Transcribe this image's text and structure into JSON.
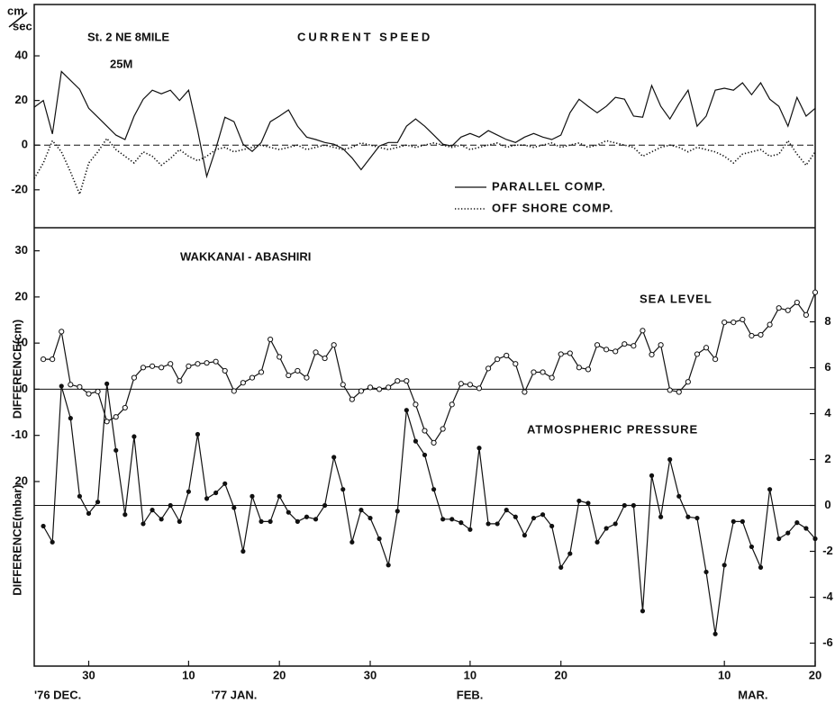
{
  "chart_data": [
    {
      "type": "line",
      "title": "CURRENT SPEED",
      "annotations": [
        "St. 2  NE 8MILE",
        "25M"
      ],
      "y_unit": [
        "cm",
        "sec"
      ],
      "xlim": [
        0,
        86
      ],
      "ylim": [
        -37,
        63
      ],
      "yticks": [
        40,
        20,
        0,
        -20
      ],
      "zero_line": "dashed",
      "legend": "lower right",
      "x": [
        0,
        1,
        2,
        3,
        4,
        5,
        6,
        7,
        8,
        9,
        10,
        11,
        12,
        13,
        14,
        15,
        16,
        17,
        18,
        19,
        20,
        21,
        22,
        23,
        24,
        25,
        26,
        27,
        28,
        29,
        30,
        31,
        32,
        33,
        34,
        35,
        36,
        37,
        38,
        39,
        40,
        41,
        42,
        43,
        44,
        45,
        46,
        47,
        48,
        49,
        50,
        51,
        52,
        53,
        54,
        55,
        56,
        57,
        58,
        59,
        60,
        61,
        62,
        63,
        64,
        65,
        66,
        67,
        68,
        69,
        70,
        71,
        72,
        73,
        74,
        75,
        76,
        77,
        78,
        79,
        80,
        81,
        82,
        83,
        84,
        85,
        86
      ],
      "series": [
        {
          "name": "PARALLEL COMP.",
          "color": "#111111",
          "style": "solid",
          "values": [
            17,
            20,
            5,
            33,
            29,
            25,
            16.5,
            12.5,
            8.5,
            4.5,
            2.5,
            13,
            20.6,
            24.6,
            23,
            24.6,
            20,
            24.6,
            6.5,
            -14,
            -1.6,
            12.5,
            10.5,
            0.4,
            -2.8,
            1.2,
            10.5,
            13,
            15.8,
            8.5,
            3.6,
            2.5,
            1.2,
            0.4,
            -1.6,
            -5.7,
            -11,
            -5.7,
            -0.4,
            1.2,
            1.2,
            8.5,
            11.7,
            8.5,
            4.5,
            0.4,
            -0.4,
            3.6,
            5.2,
            3.6,
            6.5,
            4.5,
            2.5,
            1.2,
            3.6,
            5.2,
            3.6,
            2.5,
            4.5,
            14.5,
            20.6,
            17.4,
            14.5,
            17.4,
            21.4,
            20.6,
            13,
            12.5,
            26.7,
            17.4,
            11.7,
            18.6,
            24.6,
            8.5,
            13,
            24.6,
            25.5,
            24.6,
            27.9,
            22.6,
            27.9,
            20.6,
            17.4,
            8.5,
            21.4,
            13,
            16.5
          ]
        },
        {
          "name": "OFF SHORE COMP.",
          "color": "#111111",
          "style": "dotted",
          "values": [
            -15,
            -8,
            2,
            -3,
            -12,
            -22,
            -8,
            -3,
            3,
            -2,
            -5,
            -8,
            -3,
            -5,
            -9,
            -6,
            -2,
            -5,
            -7,
            -5,
            -2,
            -1,
            -3,
            -2,
            -1,
            0,
            -1,
            -2,
            -1,
            0,
            -2,
            -1,
            0,
            -1,
            -2,
            -1,
            1,
            0,
            -1,
            -2,
            -1,
            0,
            -1,
            0,
            1,
            0,
            -1,
            0,
            -2,
            -1,
            0,
            1,
            -1,
            0,
            0,
            -1,
            0,
            1,
            -1,
            0,
            1,
            -1,
            0,
            2,
            1,
            0,
            -1,
            -5,
            -3,
            -1,
            0,
            -1,
            -3,
            -1,
            -2,
            -3,
            -5,
            -8,
            -4,
            -3,
            -2,
            -5,
            -4,
            2,
            -4,
            -9,
            -3
          ]
        }
      ]
    },
    {
      "type": "line",
      "subtitle": "WAKKANAI - ABASHIRI",
      "ylabel": "DIFFERENCE(cm)",
      "y2label": "DIFFERENCE(mbar)",
      "xlim": [
        0,
        86
      ],
      "xticks": [
        {
          "value": 6,
          "label": "30"
        },
        {
          "value": 17,
          "label": "10"
        },
        {
          "value": 27,
          "label": "20"
        },
        {
          "value": 37,
          "label": "30"
        },
        {
          "value": 48,
          "label": "10"
        },
        {
          "value": 58,
          "label": "20"
        },
        {
          "value": 76,
          "label": "10"
        },
        {
          "value": 86,
          "label": "20"
        }
      ],
      "x_period_labels": [
        {
          "value": 0,
          "label": "'76 DEC."
        },
        {
          "value": 19.5,
          "label": "'77 JAN."
        },
        {
          "value": 46.5,
          "label": "FEB."
        },
        {
          "value": 77.5,
          "label": "MAR."
        }
      ],
      "ylim": [
        -60,
        35
      ],
      "yticks": [
        30,
        20,
        10,
        0,
        -10,
        {
          "value": -20,
          "label": "20"
        }
      ],
      "y2lim": [
        -7,
        12.1
      ],
      "y2ticks": [
        8,
        6,
        4,
        2,
        0,
        -2,
        -4,
        -6
      ],
      "zero_line": "solid",
      "x": [
        1,
        2,
        3,
        4,
        5,
        6,
        7,
        8,
        9,
        10,
        11,
        12,
        13,
        14,
        15,
        16,
        17,
        18,
        19,
        20,
        21,
        22,
        23,
        24,
        25,
        26,
        27,
        28,
        29,
        30,
        31,
        32,
        33,
        34,
        35,
        36,
        37,
        38,
        39,
        40,
        41,
        42,
        43,
        44,
        45,
        46,
        47,
        48,
        49,
        50,
        51,
        52,
        53,
        54,
        55,
        56,
        57,
        58,
        59,
        60,
        61,
        62,
        63,
        64,
        65,
        66,
        67,
        68,
        69,
        70,
        71,
        72,
        73,
        74,
        75,
        76,
        77,
        78,
        79,
        80,
        81,
        82,
        83,
        84,
        85,
        86
      ],
      "series": [
        {
          "name": "SEA LEVEL",
          "color": "#111111",
          "marker": "open",
          "values": [
            6.5,
            6.5,
            12.5,
            1,
            0.5,
            -1,
            -0.5,
            -7,
            -6,
            -4,
            2.5,
            4.7,
            5,
            4.7,
            5.5,
            1.8,
            5,
            5.5,
            5.7,
            6,
            4,
            -0.4,
            1.4,
            2.5,
            3.7,
            10.8,
            7,
            3,
            4,
            2.5,
            8,
            6.7,
            9.6,
            1,
            -2.2,
            -0.4,
            0.4,
            0,
            0.4,
            1.8,
            1.8,
            -3.3,
            -9,
            -11.6,
            -8.6,
            -3.3,
            1.2,
            1,
            0.2,
            4.5,
            6.5,
            7.3,
            5.5,
            -0.6,
            3.7,
            3.7,
            2.5,
            7.6,
            7.8,
            4.7,
            4.3,
            9.6,
            8.6,
            8.2,
            9.8,
            9.4,
            12.7,
            7.5,
            9.6,
            -0.2,
            -0.6,
            1.6,
            7.6,
            9,
            6.5,
            14.5,
            14.5,
            15.1,
            11.6,
            11.8,
            14,
            17.6,
            17.1,
            18.8,
            16.1,
            21
          ]
        },
        {
          "name": "ATMOSPHERIC PRESSURE",
          "color": "#111111",
          "marker": "filled",
          "axis": "y2",
          "values": [
            -0.9,
            -1.6,
            5.2,
            3.8,
            0.4,
            -0.35,
            0.15,
            5.3,
            2.4,
            -0.4,
            3,
            -0.8,
            -0.2,
            -0.6,
            0,
            -0.7,
            0.6,
            3.1,
            0.3,
            0.55,
            0.95,
            -0.1,
            -2,
            0.4,
            -0.7,
            -0.7,
            0.4,
            -0.3,
            -0.7,
            -0.5,
            -0.6,
            0,
            2.1,
            0.7,
            -1.6,
            -0.2,
            -0.55,
            -1.45,
            -2.6,
            -0.25,
            4.15,
            2.8,
            2.2,
            0.7,
            -0.6,
            -0.6,
            -0.75,
            -1.05,
            2.5,
            -0.8,
            -0.8,
            -0.2,
            -0.5,
            -1.3,
            -0.55,
            -0.4,
            -0.9,
            -2.7,
            -2.1,
            0.2,
            0.1,
            -1.6,
            -1,
            -0.8,
            0,
            0,
            -4.6,
            1.3,
            -0.5,
            2,
            0.4,
            -0.5,
            -0.55,
            -2.9,
            -5.6,
            -2.6,
            -0.7,
            -0.7,
            -1.8,
            -2.7,
            0.7,
            -1.45,
            -1.2,
            -0.75,
            -1,
            -1.45
          ]
        }
      ]
    }
  ]
}
